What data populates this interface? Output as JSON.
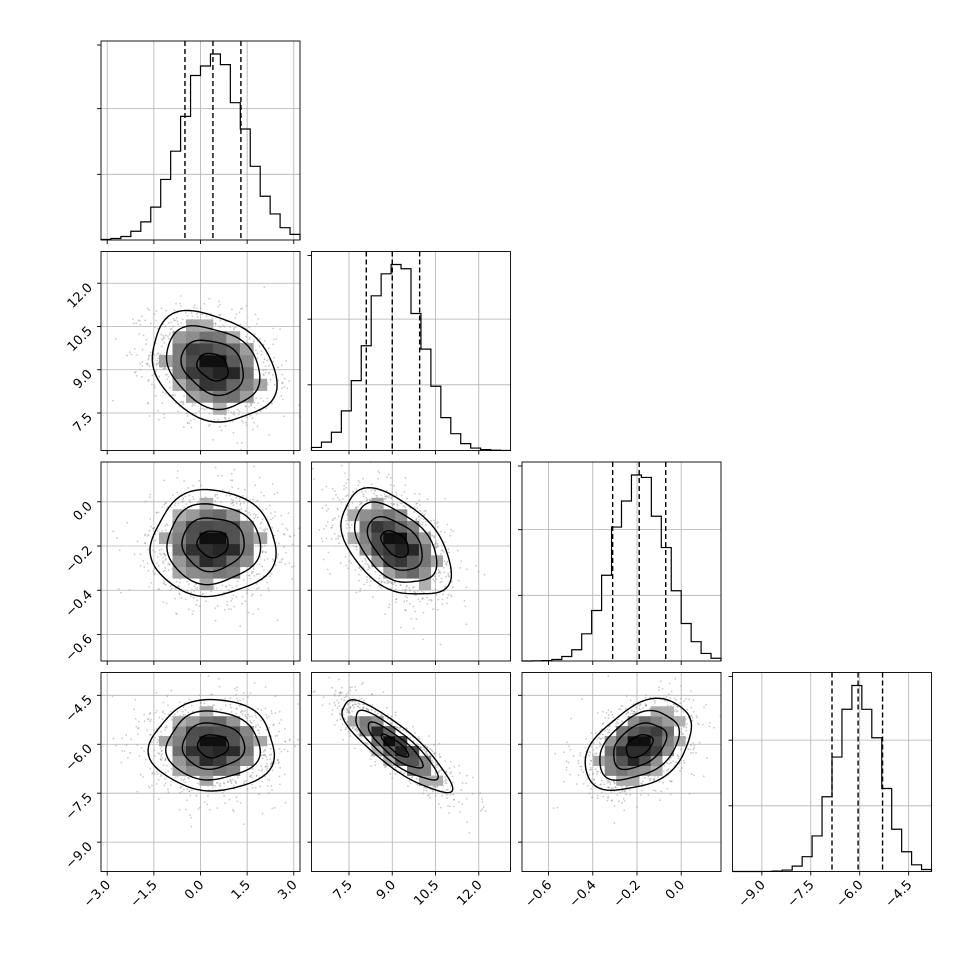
{
  "chart_data": {
    "type": "corner",
    "grid": true,
    "parameters": [
      {
        "range": [
          -3.2,
          3.2
        ],
        "ticks": [
          -3.0,
          -1.5,
          0.0,
          1.5,
          3.0
        ],
        "tick_labels": [
          "−3.0",
          "−1.5",
          "0.0",
          "1.5",
          "3.0"
        ],
        "mean": 0.4,
        "sigma": 1.0,
        "quantiles": [
          -0.5,
          0.4,
          1.3
        ]
      },
      {
        "range": [
          6.2,
          13.1
        ],
        "ticks": [
          7.5,
          9.0,
          10.5,
          12.0
        ],
        "tick_labels": [
          "7.5",
          "9.0",
          "10.5",
          "12.0"
        ],
        "mean": 9.1,
        "sigma": 0.95,
        "quantiles": [
          8.1,
          9.0,
          9.95
        ]
      },
      {
        "range": [
          -0.72,
          0.18
        ],
        "ticks": [
          -0.6,
          -0.4,
          -0.2,
          0.0
        ],
        "tick_labels": [
          "−0.6",
          "−0.4",
          "−0.2",
          "0.0"
        ],
        "mean": -0.19,
        "sigma": 0.12,
        "quantiles": [
          -0.31,
          -0.19,
          -0.07
        ]
      },
      {
        "range": [
          -9.9,
          -3.8
        ],
        "ticks": [
          -9.0,
          -7.5,
          -6.0,
          -4.5
        ],
        "tick_labels": [
          "−9.0",
          "−7.5",
          "−6.0",
          "−4.5"
        ],
        "mean": -6.05,
        "sigma": 0.7,
        "quantiles": [
          -6.85,
          -6.05,
          -5.3
        ]
      }
    ],
    "correlations": {
      "0-1": -0.25,
      "0-2": 0.0,
      "0-3": 0.0,
      "1-2": -0.45,
      "1-3": -0.85,
      "2-3": 0.4
    },
    "contour_sigma_levels": [
      0.5,
      1.0,
      1.5,
      2.0
    ],
    "colors": {
      "line": "#000000",
      "grid": "#b0b0b0",
      "scatter": "#8c8c8c",
      "histogram": "#000000"
    }
  }
}
